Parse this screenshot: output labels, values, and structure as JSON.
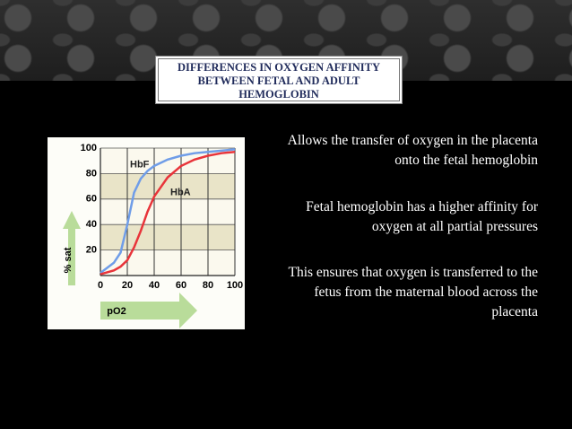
{
  "slide": {
    "title": "DIFFERENCES IN OXYGEN AFFINITY BETWEEN FETAL AND ADULT HEMOGLOBIN",
    "bullets": [
      "Allows the transfer of  oxygen in the placenta onto the fetal hemoglobin",
      "Fetal hemoglobin has a higher affinity for oxygen at all partial pressures",
      "This ensures that oxygen is transferred to the fetus from the maternal blood across the placenta"
    ]
  },
  "chart_data": {
    "type": "line",
    "x_label": "pO2",
    "y_label": "% sat",
    "x": [
      0,
      10,
      15,
      20,
      25,
      30,
      35,
      40,
      50,
      60,
      70,
      80,
      90,
      100
    ],
    "series": [
      {
        "name": "HbF",
        "color": "#6f9de8",
        "values": [
          2,
          10,
          18,
          40,
          65,
          76,
          82,
          86,
          91,
          94,
          96,
          97,
          98,
          99
        ]
      },
      {
        "name": "HbA",
        "color": "#e8343a",
        "values": [
          1,
          4,
          7,
          12,
          22,
          35,
          50,
          62,
          77,
          86,
          91,
          94,
          96,
          97
        ]
      }
    ],
    "xlim": [
      0,
      100
    ],
    "xticks": [
      0,
      20,
      40,
      60,
      80,
      100
    ],
    "ylim": [
      0,
      100
    ],
    "yticks": [
      20,
      40,
      60,
      80,
      100
    ],
    "grid": true
  }
}
